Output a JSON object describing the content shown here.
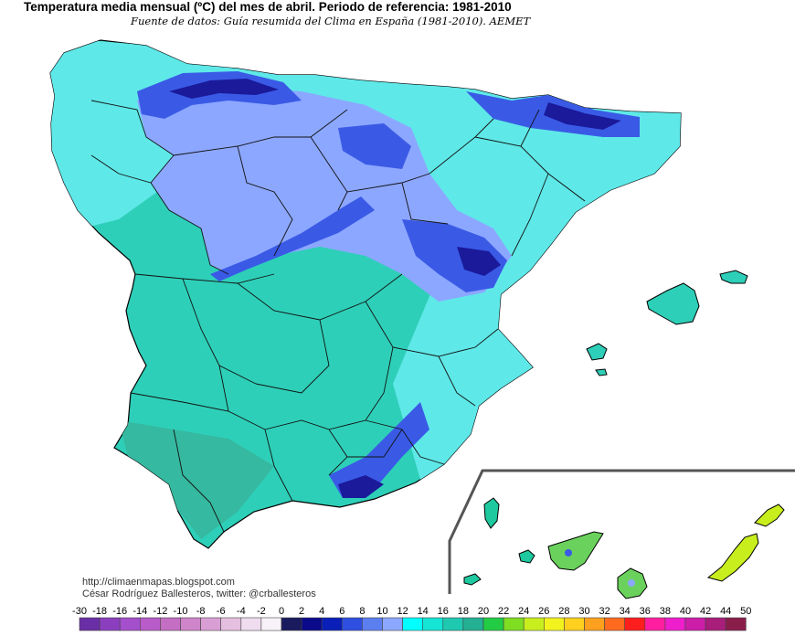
{
  "title": "Temperatura media mensual (ºC) del mes de abril. Periodo de referencia: 1981-2010",
  "subtitle": "Fuente de datos: Guía resumida del Clima en España (1981-2010). AEMET",
  "credits": {
    "blog": "http://climaenmapas.blogspot.com",
    "author": "César Rodríguez Ballesteros, twitter: @crballesteros"
  },
  "legend": {
    "labels": [
      "-30",
      "-18",
      "-16",
      "-14",
      "-12",
      "-10",
      "-8",
      "-6",
      "-4",
      "-2",
      "0",
      "2",
      "4",
      "6",
      "8",
      "10",
      "12",
      "14",
      "16",
      "18",
      "20",
      "22",
      "24",
      "26",
      "28",
      "30",
      "32",
      "34",
      "36",
      "38",
      "40",
      "42",
      "44",
      "50"
    ],
    "colors": [
      "#6a2fa6",
      "#8b3fbf",
      "#a44fcc",
      "#b85cc9",
      "#c46fc4",
      "#cf85c9",
      "#d99fd4",
      "#e5bfdf",
      "#efdcef",
      "#f7f2f7",
      "#1a1a5e",
      "#0a0a8a",
      "#0a1fb8",
      "#2f4fe0",
      "#5c7ff0",
      "#8ca7ff",
      "#00ffff",
      "#14e5d4",
      "#1ec9b0",
      "#24b092",
      "#22cc44",
      "#7fdd22",
      "#c8ee1e",
      "#f2f21e",
      "#ffd01e",
      "#ffa01e",
      "#ff6a1e",
      "#ff1e1e",
      "#ff1ea0",
      "#ee1ecc",
      "#cc1ea8",
      "#a81e7a",
      "#8a1e4a"
    ]
  },
  "map": {
    "colors": {
      "coast": "#5fe8e8",
      "warm": "#2ecfb8",
      "south": "#35b9a0",
      "cool": "#8ca7ff",
      "cold": "#3a5ae6",
      "mountain": "#1a1a9a",
      "canary_land": "#1ec9a0",
      "canary_green": "#6ad25c",
      "canary_lime": "#c8ee1e"
    }
  }
}
